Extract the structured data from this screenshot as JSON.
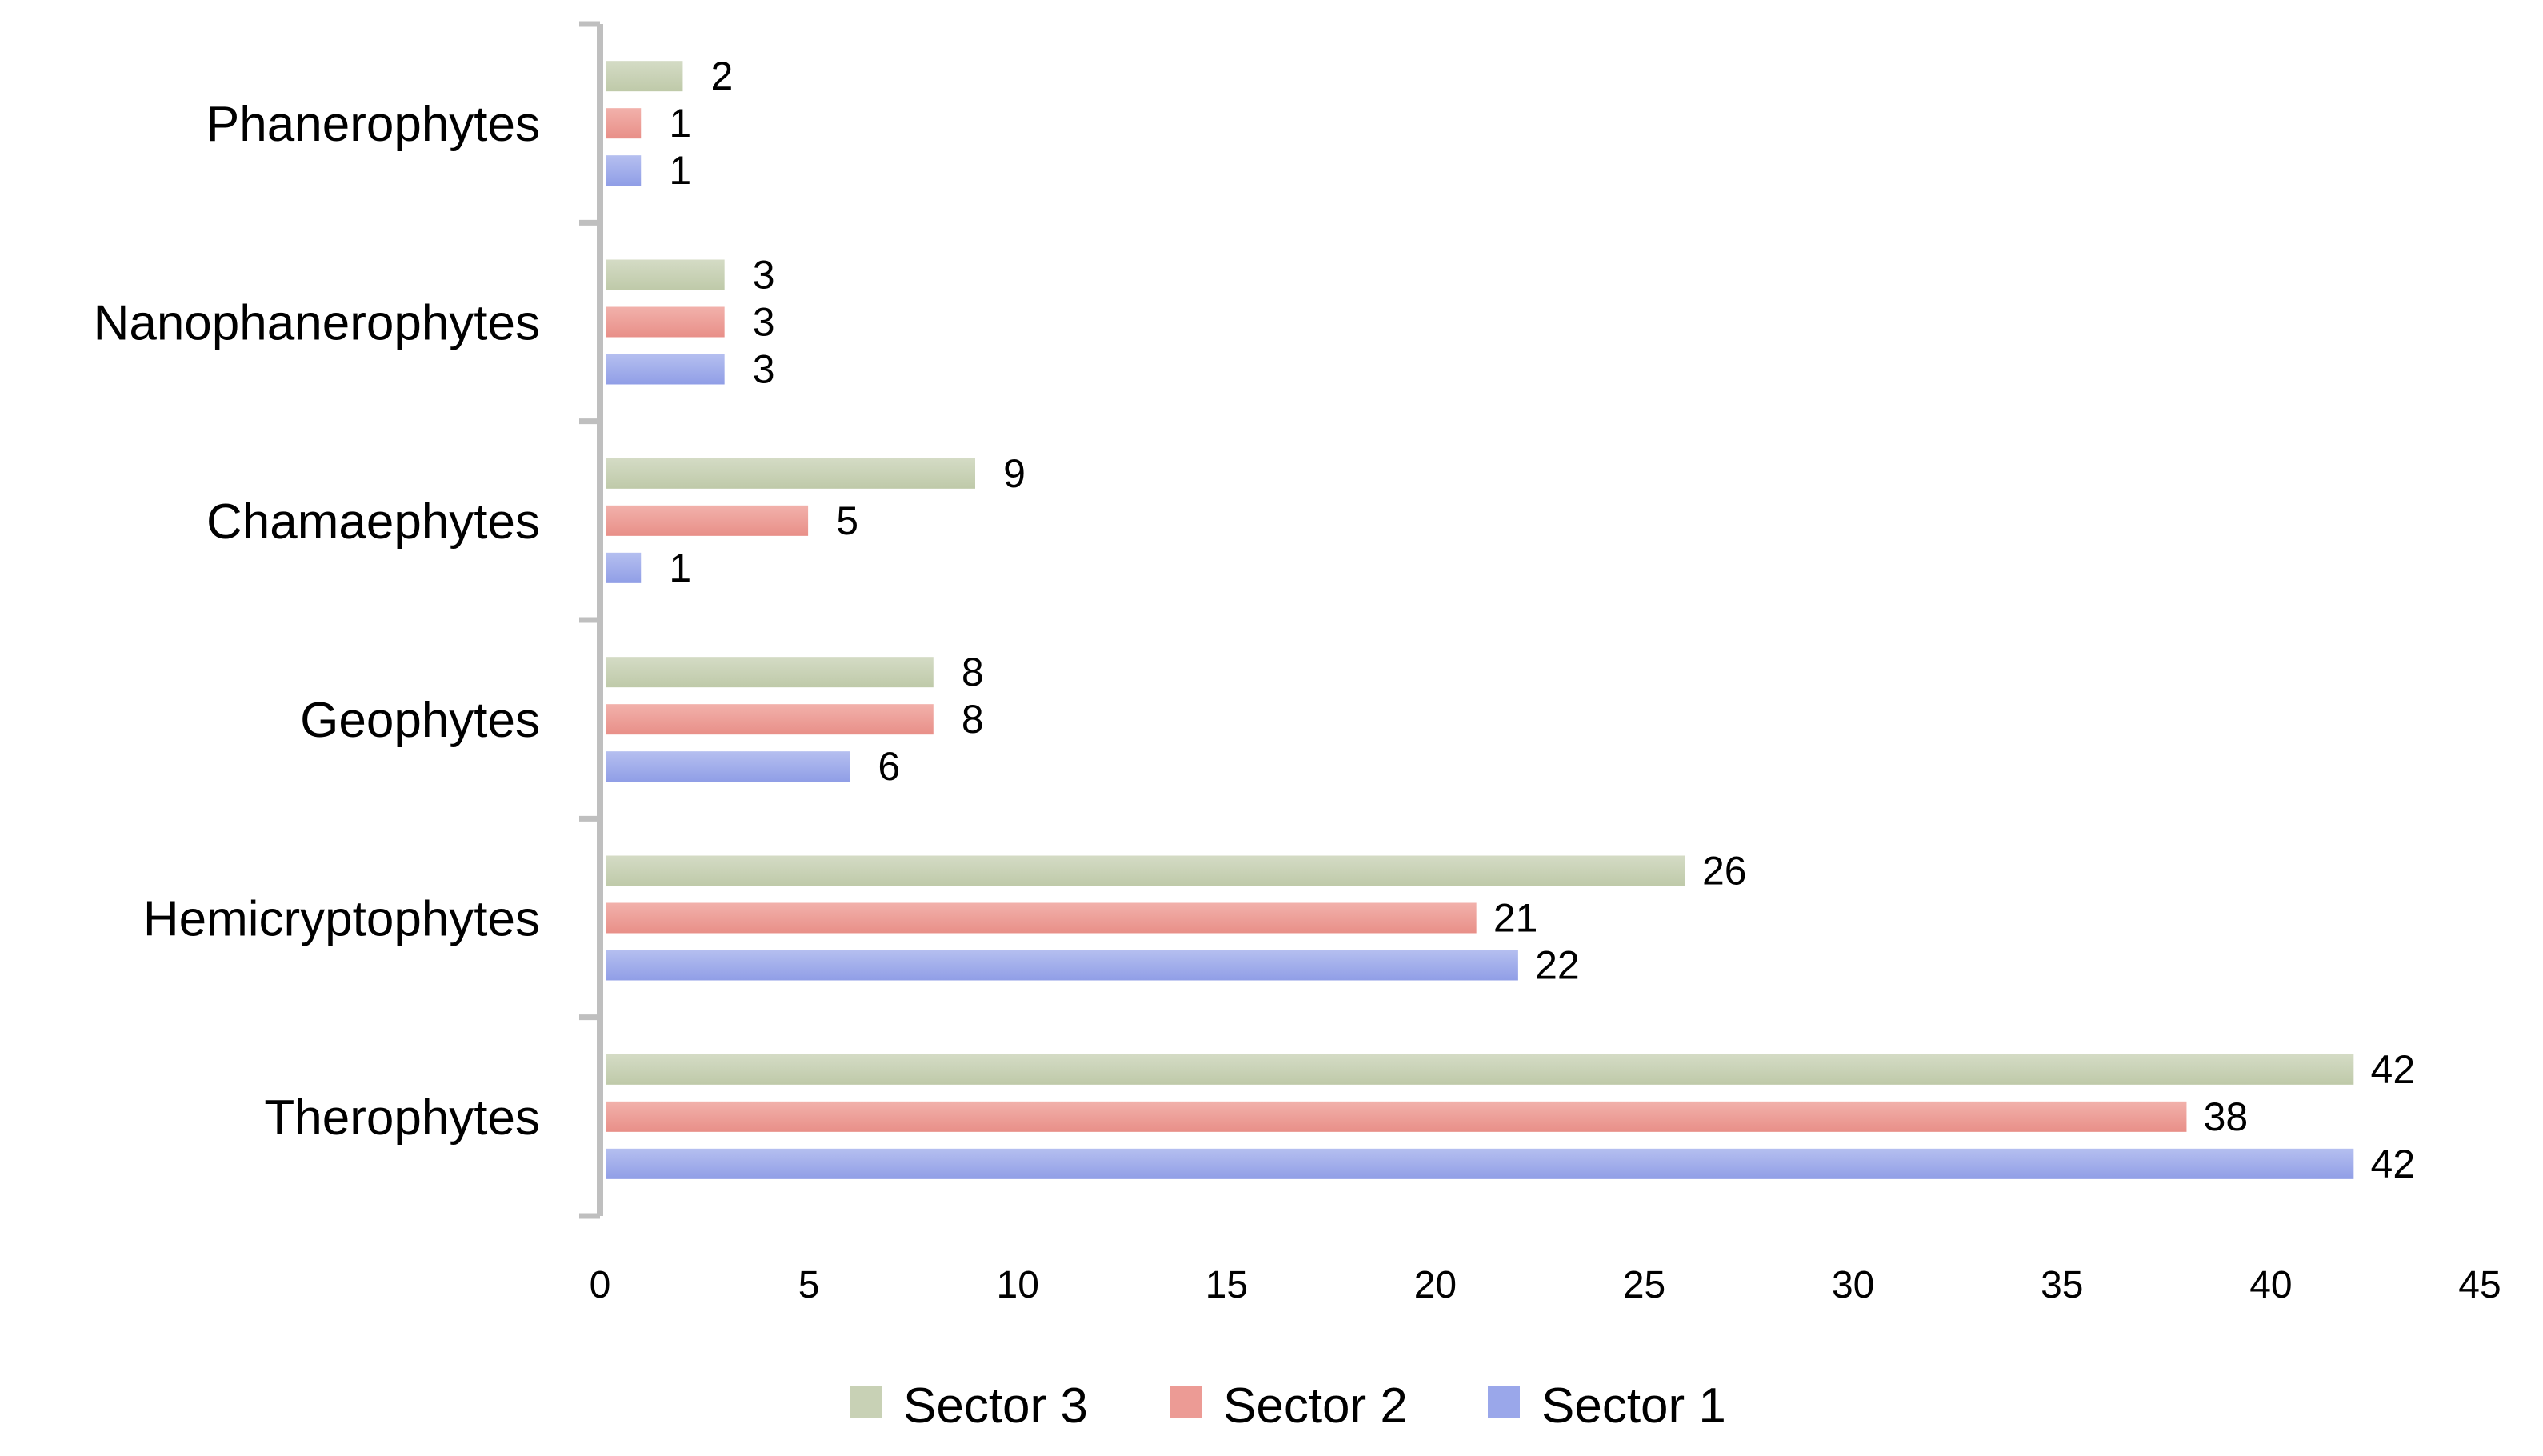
{
  "chart_data": {
    "type": "bar",
    "orientation": "horizontal",
    "categories": [
      "Therophytes",
      "Hemicryptophytes",
      "Geophytes",
      "Chamaephytes",
      "Nanophanerophytes",
      "Phanerophytes"
    ],
    "series": [
      {
        "name": "Sector 1",
        "color": "#9aa7ea",
        "values": [
          42,
          22,
          6,
          1,
          3,
          1
        ]
      },
      {
        "name": "Sector 2",
        "color": "#ec9b95",
        "values": [
          38,
          21,
          8,
          5,
          3,
          1
        ]
      },
      {
        "name": "Sector 3",
        "color": "#c8d1b5",
        "values": [
          42,
          26,
          8,
          9,
          3,
          2
        ]
      }
    ],
    "xlim": [
      0,
      45
    ],
    "xticks": [
      "0",
      "5",
      "10",
      "15",
      "20",
      "25",
      "30",
      "35",
      "40",
      "45"
    ],
    "data_labels": true,
    "grid": false,
    "legend": {
      "position": "bottom",
      "order": [
        "Sector 3",
        "Sector 2",
        "Sector 1"
      ]
    },
    "title": "",
    "xlabel": "",
    "ylabel": ""
  }
}
